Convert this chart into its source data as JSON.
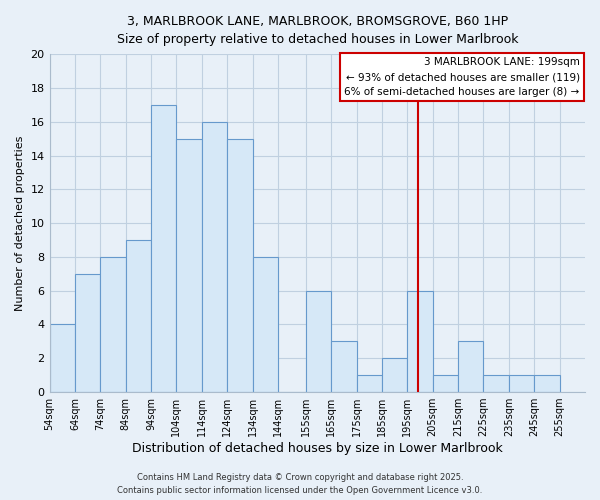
{
  "title_line1": "3, MARLBROOK LANE, MARLBROOK, BROMSGROVE, B60 1HP",
  "title_line2": "Size of property relative to detached houses in Lower Marlbrook",
  "xlabel": "Distribution of detached houses by size in Lower Marlbrook",
  "ylabel": "Number of detached properties",
  "bar_color": "#d6e8f7",
  "bar_edge_color": "#6699cc",
  "background_color": "#e8f0f8",
  "plot_bg_color": "#e8f0f8",
  "grid_color": "#c0d0e0",
  "bins": [
    54,
    64,
    74,
    84,
    94,
    104,
    114,
    124,
    134,
    144,
    155,
    165,
    175,
    185,
    195,
    205,
    215,
    225,
    235,
    245,
    255
  ],
  "counts": [
    4,
    7,
    8,
    9,
    17,
    15,
    16,
    15,
    8,
    0,
    6,
    3,
    1,
    2,
    6,
    1,
    3,
    1,
    1,
    1
  ],
  "tick_labels": [
    "54sqm",
    "64sqm",
    "74sqm",
    "84sqm",
    "94sqm",
    "104sqm",
    "114sqm",
    "124sqm",
    "134sqm",
    "144sqm",
    "155sqm",
    "165sqm",
    "175sqm",
    "185sqm",
    "195sqm",
    "205sqm",
    "215sqm",
    "225sqm",
    "235sqm",
    "245sqm",
    "255sqm"
  ],
  "vline_x": 199,
  "vline_color": "#cc0000",
  "ylim": [
    0,
    20
  ],
  "yticks": [
    0,
    2,
    4,
    6,
    8,
    10,
    12,
    14,
    16,
    18,
    20
  ],
  "legend_title": "3 MARLBROOK LANE: 199sqm",
  "legend_line1": "← 93% of detached houses are smaller (119)",
  "legend_line2": "6% of semi-detached houses are larger (8) →",
  "legend_box_color": "#ffffff",
  "legend_box_edge_color": "#cc0000",
  "footnote1": "Contains HM Land Registry data © Crown copyright and database right 2025.",
  "footnote2": "Contains public sector information licensed under the Open Government Licence v3.0."
}
